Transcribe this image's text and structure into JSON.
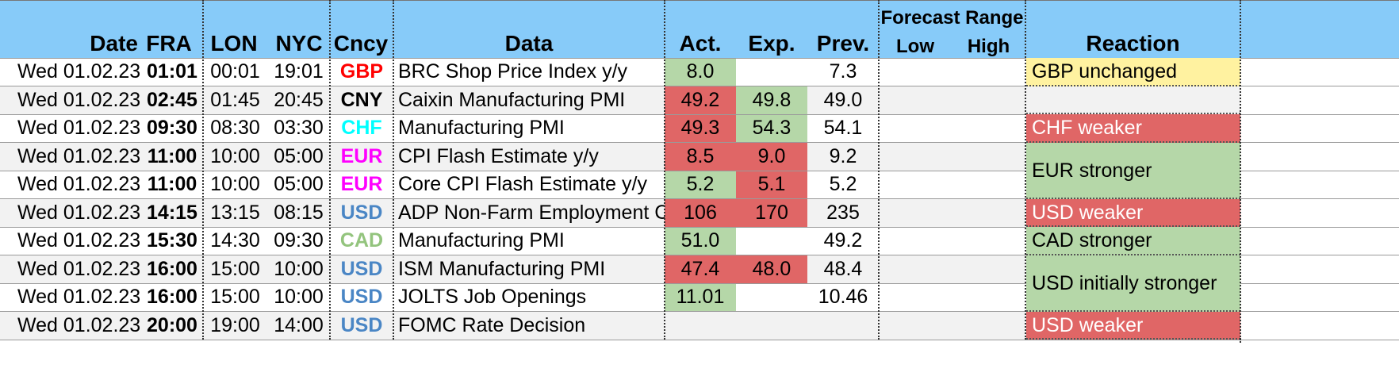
{
  "colors": {
    "header_bg": "#87cbf9",
    "row_alt_bg": "#f2f2f2",
    "green": "#b5d7a8",
    "red": "#e06666",
    "yellow": "#fff2a0",
    "GBP": "#ff0000",
    "CNY": "#000000",
    "CHF": "#00ffff",
    "EUR": "#ff00ff",
    "USD": "#4a86c5",
    "CAD": "#93c47d"
  },
  "headers": {
    "date": "Date",
    "fra": "FRA",
    "lon": "LON",
    "nyc": "NYC",
    "cncy": "Cncy",
    "data": "Data",
    "act": "Act.",
    "exp": "Exp.",
    "prev": "Prev.",
    "forecast_range": "Forecast Range",
    "low": "Low",
    "high": "High",
    "reaction": "Reaction"
  },
  "rows": [
    {
      "date": "Wed 01.02.23",
      "fra": "01:01",
      "lon": "00:01",
      "nyc": "19:01",
      "cncy": "GBP",
      "data": "BRC Shop Price Index y/y",
      "act": "8.0",
      "exp": "",
      "prev": "7.3",
      "low": "",
      "high": "",
      "act_color": "green",
      "exp_color": ""
    },
    {
      "date": "Wed 01.02.23",
      "fra": "02:45",
      "lon": "01:45",
      "nyc": "20:45",
      "cncy": "CNY",
      "data": "Caixin Manufacturing PMI",
      "act": "49.2",
      "exp": "49.8",
      "prev": "49.0",
      "low": "",
      "high": "",
      "act_color": "red",
      "exp_color": "green"
    },
    {
      "date": "Wed 01.02.23",
      "fra": "09:30",
      "lon": "08:30",
      "nyc": "03:30",
      "cncy": "CHF",
      "data": "Manufacturing PMI",
      "act": "49.3",
      "exp": "54.3",
      "prev": "54.1",
      "low": "",
      "high": "",
      "act_color": "red",
      "exp_color": "green"
    },
    {
      "date": "Wed 01.02.23",
      "fra": "11:00",
      "lon": "10:00",
      "nyc": "05:00",
      "cncy": "EUR",
      "data": "CPI Flash Estimate y/y",
      "act": "8.5",
      "exp": "9.0",
      "prev": "9.2",
      "low": "",
      "high": "",
      "act_color": "red",
      "exp_color": "red"
    },
    {
      "date": "Wed 01.02.23",
      "fra": "11:00",
      "lon": "10:00",
      "nyc": "05:00",
      "cncy": "EUR",
      "data": "Core CPI Flash Estimate y/y",
      "act": "5.2",
      "exp": "5.1",
      "prev": "5.2",
      "low": "",
      "high": "",
      "act_color": "green",
      "exp_color": "red"
    },
    {
      "date": "Wed 01.02.23",
      "fra": "14:15",
      "lon": "13:15",
      "nyc": "08:15",
      "cncy": "USD",
      "data": "ADP Non-Farm Employment Change",
      "act": "106",
      "exp": "170",
      "prev": "235",
      "low": "",
      "high": "",
      "act_color": "red",
      "exp_color": "red"
    },
    {
      "date": "Wed 01.02.23",
      "fra": "15:30",
      "lon": "14:30",
      "nyc": "09:30",
      "cncy": "CAD",
      "data": "Manufacturing PMI",
      "act": "51.0",
      "exp": "",
      "prev": "49.2",
      "low": "",
      "high": "",
      "act_color": "green",
      "exp_color": ""
    },
    {
      "date": "Wed 01.02.23",
      "fra": "16:00",
      "lon": "15:00",
      "nyc": "10:00",
      "cncy": "USD",
      "data": "ISM Manufacturing PMI",
      "act": "47.4",
      "exp": "48.0",
      "prev": "48.4",
      "low": "",
      "high": "",
      "act_color": "red",
      "exp_color": "red"
    },
    {
      "date": "Wed 01.02.23",
      "fra": "16:00",
      "lon": "15:00",
      "nyc": "10:00",
      "cncy": "USD",
      "data": "JOLTS Job Openings",
      "act": "11.01",
      "exp": "",
      "prev": "10.46",
      "low": "",
      "high": "",
      "act_color": "green",
      "exp_color": ""
    },
    {
      "date": "Wed 01.02.23",
      "fra": "20:00",
      "lon": "19:00",
      "nyc": "14:00",
      "cncy": "USD",
      "data": "FOMC Rate Decision",
      "act": "",
      "exp": "",
      "prev": "",
      "low": "",
      "high": "",
      "act_color": "",
      "exp_color": ""
    }
  ],
  "reactions": [
    {
      "text": "GBP unchanged",
      "row_start": 0,
      "row_end": 0,
      "color": "yellow"
    },
    {
      "text": "",
      "row_start": 1,
      "row_end": 1,
      "color": ""
    },
    {
      "text": "CHF weaker",
      "row_start": 2,
      "row_end": 2,
      "color": "red"
    },
    {
      "text": "EUR stronger",
      "row_start": 3,
      "row_end": 4,
      "color": "green"
    },
    {
      "text": "USD weaker",
      "row_start": 5,
      "row_end": 5,
      "color": "red"
    },
    {
      "text": "CAD stronger",
      "row_start": 6,
      "row_end": 6,
      "color": "green"
    },
    {
      "text": "USD initially stronger",
      "row_start": 7,
      "row_end": 8,
      "color": "green"
    },
    {
      "text": "USD weaker",
      "row_start": 9,
      "row_end": 9,
      "color": "red"
    }
  ]
}
